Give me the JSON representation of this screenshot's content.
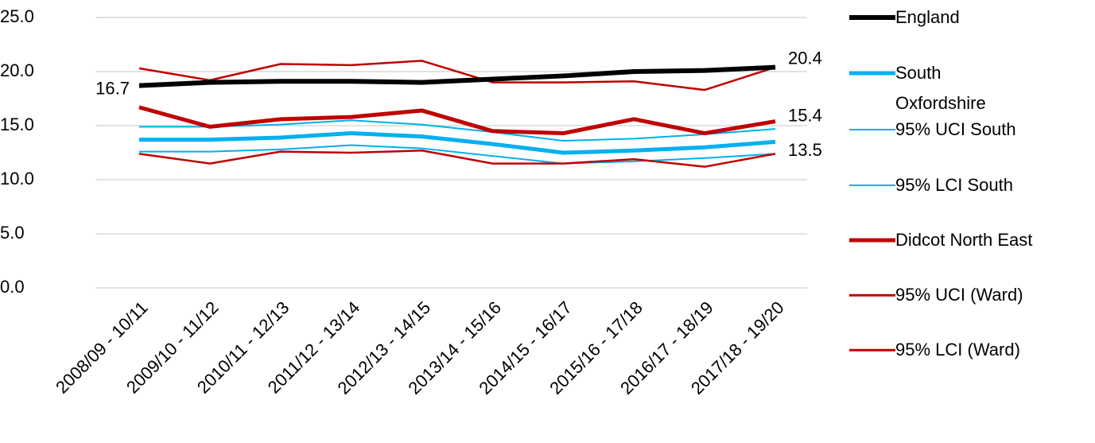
{
  "chart_data": {
    "type": "line",
    "categories": [
      "2008/09 - 10/11",
      "2009/10 - 11/12",
      "2010/11 - 12/13",
      "2011/12 - 13/14",
      "2012/13 - 14/15",
      "2013/14 - 15/16",
      "2014/15 - 16/17",
      "2015/16 - 17/18",
      "2016/17 - 18/19",
      "2017/18 - 19/20"
    ],
    "ylim": [
      0,
      25
    ],
    "yticks": [
      {
        "value": 0,
        "label": "0.0"
      },
      {
        "value": 5,
        "label": "5.0"
      },
      {
        "value": 10,
        "label": "10.0"
      },
      {
        "value": 15,
        "label": "15.0"
      },
      {
        "value": 20,
        "label": "20.0"
      },
      {
        "value": 25,
        "label": "25.0"
      }
    ],
    "grid": true,
    "legend": "right",
    "series": [
      {
        "name": "England",
        "color": "#000000",
        "width": 6,
        "values": [
          18.7,
          19.0,
          19.1,
          19.1,
          19.0,
          19.3,
          19.6,
          20.0,
          20.1,
          20.4
        ],
        "label_points": [
          9
        ]
      },
      {
        "name": "South Oxfordshire",
        "color": "#00b0f0",
        "width": 5,
        "values": [
          13.7,
          13.7,
          13.9,
          14.3,
          14.0,
          13.3,
          12.5,
          12.7,
          13.0,
          13.5
        ],
        "label_points": [
          9
        ]
      },
      {
        "name": "95% UCI South",
        "color": "#00b0f0",
        "width": 2,
        "values": [
          14.9,
          14.9,
          15.1,
          15.5,
          15.1,
          14.4,
          13.6,
          13.8,
          14.2,
          14.7
        ]
      },
      {
        "name": "95% LCI South",
        "color": "#00b0f0",
        "width": 2,
        "values": [
          12.6,
          12.6,
          12.8,
          13.2,
          12.9,
          12.2,
          11.5,
          11.7,
          12.0,
          12.4
        ]
      },
      {
        "name": "Didcot North East",
        "color": "#c00000",
        "width": 5,
        "values": [
          16.7,
          14.9,
          15.6,
          15.8,
          16.4,
          14.5,
          14.3,
          15.6,
          14.3,
          15.4
        ],
        "label_points": [
          0,
          9
        ]
      },
      {
        "name": "95% UCI (Ward)",
        "color": "#c00000",
        "width": 2.5,
        "values": [
          20.3,
          19.2,
          20.7,
          20.6,
          21.0,
          19.0,
          19.0,
          19.1,
          18.3,
          20.4
        ]
      },
      {
        "name": "95% LCI (Ward)",
        "color": "#c00000",
        "width": 2.5,
        "values": [
          12.4,
          11.5,
          12.6,
          12.5,
          12.7,
          11.5,
          11.5,
          11.9,
          11.2,
          12.4
        ]
      }
    ]
  }
}
